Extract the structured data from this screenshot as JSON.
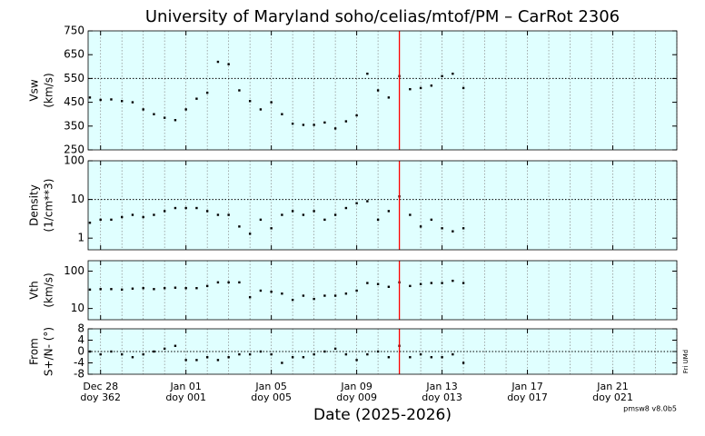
{
  "chart_data": [
    {
      "type": "scatter",
      "title": "University of Maryland  soho/celias/mtof/PM – CarRot 2306",
      "ylabel": [
        "Vsw",
        "(km/s)"
      ],
      "color": "#000000",
      "background": "#e0ffff",
      "x": [
        "2025-12-27T12:00",
        "2025-12-28T00:00",
        "2025-12-28T12:00",
        "2025-12-29T00:00",
        "2025-12-29T12:00",
        "2025-12-30T00:00",
        "2025-12-30T12:00",
        "2025-12-31T00:00",
        "2025-12-31T12:00",
        "2026-01-01T00:00",
        "2026-01-01T12:00",
        "2026-01-02T00:00",
        "2026-01-02T12:00",
        "2026-01-03T00:00",
        "2026-01-03T12:00",
        "2026-01-04T00:00",
        "2026-01-04T12:00",
        "2026-01-05T00:00",
        "2026-01-05T12:00",
        "2026-01-06T00:00",
        "2026-01-06T12:00",
        "2026-01-07T00:00",
        "2026-01-07T12:00",
        "2026-01-08T00:00",
        "2026-01-08T12:00",
        "2026-01-09T00:00",
        "2026-01-09T12:00",
        "2026-01-10T00:00",
        "2026-01-10T12:00",
        "2026-01-11T00:00",
        "2026-01-11T12:00",
        "2026-01-12T00:00",
        "2026-01-12T12:00",
        "2026-01-13T00:00",
        "2026-01-13T12:00",
        "2026-01-14T00:00"
      ],
      "values": [
        470,
        460,
        462,
        455,
        450,
        420,
        400,
        385,
        375,
        420,
        465,
        490,
        620,
        610,
        500,
        455,
        420,
        450,
        400,
        360,
        355,
        355,
        365,
        340,
        370,
        395,
        570,
        500,
        470,
        560,
        505,
        510,
        520,
        560,
        570,
        510
      ],
      "xlim": [
        "2025-12-27T10:00",
        "2026-01-24T00:00"
      ],
      "ylim": [
        250,
        750
      ],
      "yticks": [
        250,
        350,
        450,
        550,
        650,
        750
      ],
      "hline": 550,
      "log": false
    },
    {
      "type": "scatter",
      "ylabel": [
        "Density",
        "(1/cm**3)"
      ],
      "color": "#000000",
      "background": "#e0ffff",
      "x": [
        "2025-12-27T12:00",
        "2025-12-28T00:00",
        "2025-12-28T12:00",
        "2025-12-29T00:00",
        "2025-12-29T12:00",
        "2025-12-30T00:00",
        "2025-12-30T12:00",
        "2025-12-31T00:00",
        "2025-12-31T12:00",
        "2026-01-01T00:00",
        "2026-01-01T12:00",
        "2026-01-02T00:00",
        "2026-01-02T12:00",
        "2026-01-03T00:00",
        "2026-01-03T12:00",
        "2026-01-04T00:00",
        "2026-01-04T12:00",
        "2026-01-05T00:00",
        "2026-01-05T12:00",
        "2026-01-06T00:00",
        "2026-01-06T12:00",
        "2026-01-07T00:00",
        "2026-01-07T12:00",
        "2026-01-08T00:00",
        "2026-01-08T12:00",
        "2026-01-09T00:00",
        "2026-01-09T12:00",
        "2026-01-10T00:00",
        "2026-01-10T12:00",
        "2026-01-11T00:00",
        "2026-01-11T12:00",
        "2026-01-12T00:00",
        "2026-01-12T12:00",
        "2026-01-13T00:00",
        "2026-01-13T12:00",
        "2026-01-14T00:00"
      ],
      "values": [
        2.5,
        3,
        3,
        3.5,
        4,
        3.5,
        4,
        5,
        6,
        6,
        6,
        5,
        4,
        4,
        2,
        1.3,
        3,
        1.8,
        4,
        5,
        4,
        5,
        3,
        4,
        6,
        8,
        9,
        3,
        5,
        12,
        4,
        2,
        3,
        1.8,
        1.5,
        1.8
      ],
      "xlim": [
        "2025-12-27T10:00",
        "2026-01-24T00:00"
      ],
      "ylim": [
        0.5,
        100
      ],
      "yticks": [
        1,
        10,
        100
      ],
      "hline": 10,
      "log": true
    },
    {
      "type": "scatter",
      "ylabel": [
        "Vth",
        "(km/s)"
      ],
      "color": "#000000",
      "background": "#e0ffff",
      "x": [
        "2025-12-27T12:00",
        "2025-12-28T00:00",
        "2025-12-28T12:00",
        "2025-12-29T00:00",
        "2025-12-29T12:00",
        "2025-12-30T00:00",
        "2025-12-30T12:00",
        "2025-12-31T00:00",
        "2025-12-31T12:00",
        "2026-01-01T00:00",
        "2026-01-01T12:00",
        "2026-01-02T00:00",
        "2026-01-02T12:00",
        "2026-01-03T00:00",
        "2026-01-03T12:00",
        "2026-01-04T00:00",
        "2026-01-04T12:00",
        "2026-01-05T00:00",
        "2026-01-05T12:00",
        "2026-01-06T00:00",
        "2026-01-06T12:00",
        "2026-01-07T00:00",
        "2026-01-07T12:00",
        "2026-01-08T00:00",
        "2026-01-08T12:00",
        "2026-01-09T00:00",
        "2026-01-09T12:00",
        "2026-01-10T00:00",
        "2026-01-10T12:00",
        "2026-01-11T00:00",
        "2026-01-11T12:00",
        "2026-01-12T00:00",
        "2026-01-12T12:00",
        "2026-01-13T00:00",
        "2026-01-13T12:00",
        "2026-01-14T00:00"
      ],
      "values": [
        32,
        33,
        33,
        32,
        34,
        35,
        33,
        35,
        36,
        35,
        35,
        40,
        50,
        50,
        50,
        20,
        30,
        28,
        25,
        17,
        22,
        18,
        22,
        22,
        25,
        30,
        48,
        45,
        38,
        50,
        40,
        45,
        48,
        48,
        55,
        48
      ],
      "xlim": [
        "2025-12-27T10:00",
        "2026-01-24T00:00"
      ],
      "ylim": [
        5,
        190
      ],
      "yticks": [
        10,
        100
      ],
      "log": true
    },
    {
      "type": "scatter",
      "ylabel": [
        "From",
        "S+/N- (°)"
      ],
      "color": "#000000",
      "background": "#e0ffff",
      "x": [
        "2025-12-27T12:00",
        "2025-12-28T00:00",
        "2025-12-28T12:00",
        "2025-12-29T00:00",
        "2025-12-29T12:00",
        "2025-12-30T00:00",
        "2025-12-30T12:00",
        "2025-12-31T00:00",
        "2025-12-31T12:00",
        "2026-01-01T00:00",
        "2026-01-01T12:00",
        "2026-01-02T00:00",
        "2026-01-02T12:00",
        "2026-01-03T00:00",
        "2026-01-03T12:00",
        "2026-01-04T00:00",
        "2026-01-04T12:00",
        "2026-01-05T00:00",
        "2026-01-05T12:00",
        "2026-01-06T00:00",
        "2026-01-06T12:00",
        "2026-01-07T00:00",
        "2026-01-07T12:00",
        "2026-01-08T00:00",
        "2026-01-08T12:00",
        "2026-01-09T00:00",
        "2026-01-09T12:00",
        "2026-01-10T00:00",
        "2026-01-10T12:00",
        "2026-01-11T00:00",
        "2026-01-11T12:00",
        "2026-01-12T00:00",
        "2026-01-12T12:00",
        "2026-01-13T00:00",
        "2026-01-13T12:00",
        "2026-01-14T00:00"
      ],
      "values": [
        0,
        -1,
        0,
        -1,
        -2,
        -1,
        0,
        1,
        2,
        -3,
        -3,
        -2,
        -3,
        -2,
        -1,
        -1,
        0,
        -1,
        -4,
        -2,
        -2,
        -1,
        0,
        1,
        -1,
        -3,
        -1,
        0,
        -2,
        2,
        -2,
        -1,
        -2,
        -2,
        -1,
        -4
      ],
      "xlim": [
        "2025-12-27T10:00",
        "2026-01-24T00:00"
      ],
      "ylim": [
        -8,
        8
      ],
      "yticks": [
        -8,
        -4,
        0,
        4,
        8
      ],
      "hline": 0,
      "log": false,
      "xlabel": "Date (2025-2026)",
      "version": "pmsw8 v8.0b5",
      "side_note": "Fri UMd",
      "marker_line": {
        "x": "2026-01-11T00:00",
        "color": "#ff0000"
      },
      "xticks": [
        {
          "value": "2025-12-28",
          "label": [
            "Dec 28",
            "doy 362"
          ]
        },
        {
          "value": "2026-01-01",
          "label": [
            "Jan 01",
            "doy 001"
          ]
        },
        {
          "value": "2026-01-05",
          "label": [
            "Jan 05",
            "doy 005"
          ]
        },
        {
          "value": "2026-01-09",
          "label": [
            "Jan 09",
            "doy 009"
          ]
        },
        {
          "value": "2026-01-13",
          "label": [
            "Jan 13",
            "doy 013"
          ]
        },
        {
          "value": "2026-01-17",
          "label": [
            "Jan 17",
            "doy 017"
          ]
        },
        {
          "value": "2026-01-21",
          "label": [
            "Jan 21",
            "doy 021"
          ]
        }
      ]
    }
  ]
}
